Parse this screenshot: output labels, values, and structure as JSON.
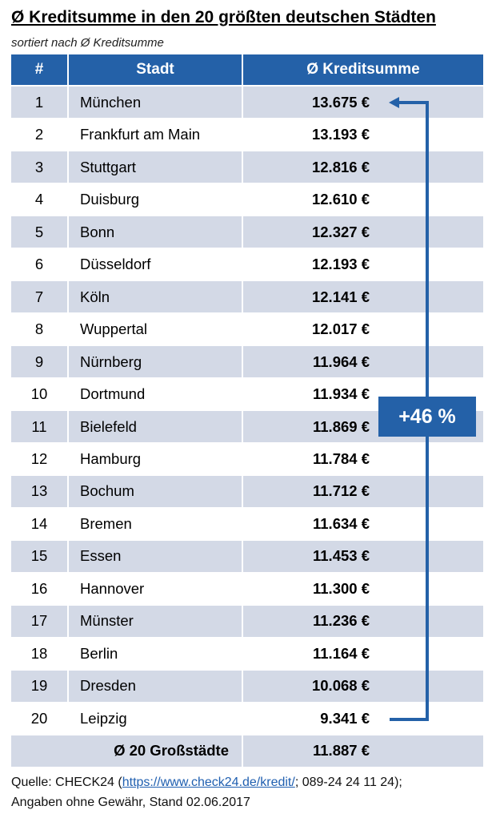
{
  "title": "Ø Kreditsumme in den 20 größten deutschen Städten",
  "subtitle": "sortiert nach Ø Kreditsumme",
  "table": {
    "headers": [
      "#",
      "Stadt",
      "Ø Kreditsumme"
    ],
    "average": {
      "label": "Ø 20 Großstädte",
      "value": "11.887 €"
    }
  },
  "chart_data": {
    "type": "table",
    "title": "Ø Kreditsumme in den 20 größten deutschen Städten",
    "columns": [
      "#",
      "Stadt",
      "Ø Kreditsumme"
    ],
    "rows": [
      {
        "rank": "1",
        "city": "München",
        "value": "13.675 €"
      },
      {
        "rank": "2",
        "city": "Frankfurt am Main",
        "value": "13.193 €"
      },
      {
        "rank": "3",
        "city": "Stuttgart",
        "value": "12.816 €"
      },
      {
        "rank": "4",
        "city": "Duisburg",
        "value": "12.610 €"
      },
      {
        "rank": "5",
        "city": "Bonn",
        "value": "12.327 €"
      },
      {
        "rank": "6",
        "city": "Düsseldorf",
        "value": "12.193 €"
      },
      {
        "rank": "7",
        "city": "Köln",
        "value": "12.141 €"
      },
      {
        "rank": "8",
        "city": "Wuppertal",
        "value": "12.017 €"
      },
      {
        "rank": "9",
        "city": "Nürnberg",
        "value": "11.964 €"
      },
      {
        "rank": "10",
        "city": "Dortmund",
        "value": "11.934 €"
      },
      {
        "rank": "11",
        "city": "Bielefeld",
        "value": "11.869 €"
      },
      {
        "rank": "12",
        "city": "Hamburg",
        "value": "11.784 €"
      },
      {
        "rank": "13",
        "city": "Bochum",
        "value": "11.712 €"
      },
      {
        "rank": "14",
        "city": "Bremen",
        "value": "11.634 €"
      },
      {
        "rank": "15",
        "city": "Essen",
        "value": "11.453 €"
      },
      {
        "rank": "16",
        "city": "Hannover",
        "value": "11.300 €"
      },
      {
        "rank": "17",
        "city": "Münster",
        "value": "11.236 €"
      },
      {
        "rank": "18",
        "city": "Berlin",
        "value": "11.164 €"
      },
      {
        "rank": "19",
        "city": "Dresden",
        "value": "10.068 €"
      },
      {
        "rank": "20",
        "city": "Leipzig",
        "value": "9.341 €"
      }
    ],
    "annotation": "+46 %"
  },
  "colors": {
    "header": "#2461a8",
    "stripe": "#d3d9e6",
    "arrow": "#2461a8"
  },
  "source": {
    "prefix": "Quelle: CHECK24 (",
    "link": "https://www.check24.de/kredit/",
    "suffix": "; 089-24 24 11 24);",
    "line2": "Angaben ohne Gewähr, Stand 02.06.2017"
  }
}
